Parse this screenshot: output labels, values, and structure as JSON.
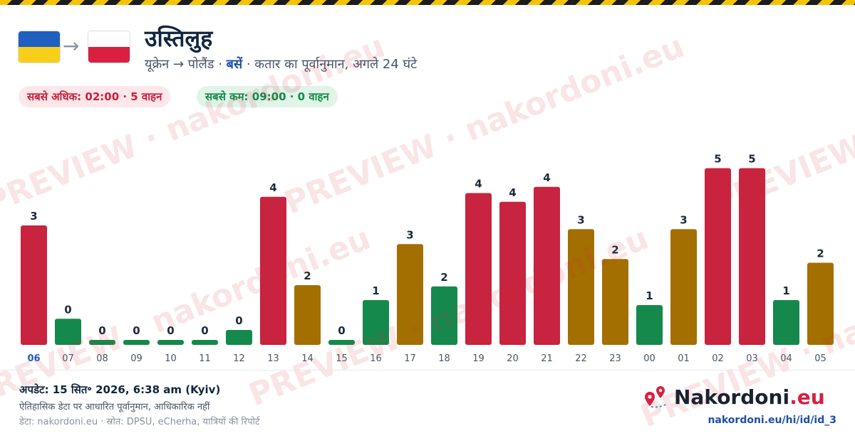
{
  "header": {
    "origin_flag": "ukraine-flag",
    "destination_flag": "poland-flag",
    "arrow": "→",
    "title": "उस्तिलुह",
    "subtitle_route": "यूक्रेन → पोलैंड · ",
    "subtitle_mode": "बसें",
    "subtitle_rest": " · कतार का पूर्वानुमान, अगले 24 घंटे"
  },
  "badges": {
    "max": "सबसे अधिक: 02:00 · 5 वाहन",
    "min": "सबसे कम: 09:00 · 0 वाहन"
  },
  "chart_data": {
    "type": "bar",
    "categories": [
      "06",
      "07",
      "08",
      "09",
      "10",
      "11",
      "12",
      "13",
      "14",
      "15",
      "16",
      "17",
      "18",
      "19",
      "20",
      "21",
      "22",
      "23",
      "00",
      "01",
      "02",
      "03",
      "04",
      "05"
    ],
    "values": [
      3,
      0,
      0,
      0,
      0,
      0,
      0,
      4,
      2,
      0,
      1,
      3,
      2,
      4,
      4,
      4,
      3,
      2,
      1,
      3,
      5,
      5,
      1,
      2
    ],
    "visual_levels": [
      0.96,
      0.21,
      0.04,
      0.04,
      0.04,
      0.04,
      0.12,
      1.19,
      0.48,
      0.04,
      0.36,
      0.81,
      0.47,
      1.22,
      1.15,
      1.27,
      0.93,
      0.69,
      0.32,
      0.93,
      1.42,
      1.42,
      0.36,
      0.66
    ],
    "colors": [
      "red",
      "green",
      "green",
      "green",
      "green",
      "green",
      "green",
      "red",
      "amber",
      "green",
      "green",
      "amber",
      "green",
      "red",
      "red",
      "red",
      "amber",
      "amber",
      "green",
      "amber",
      "red",
      "red",
      "green",
      "amber"
    ],
    "palette": {
      "red": "#c8233f",
      "amber": "#a36f00",
      "green": "#14894b"
    },
    "highlight_category": "06",
    "highlight_color": "#1e5fc0",
    "title": "",
    "xlabel": "",
    "ylabel": ""
  },
  "watermark": "PREVIEW · nakordoni.eu",
  "footer": {
    "updated": "अपडेट: 15 सित॰ 2026, 6:38 am (Kyiv)",
    "note": "ऐतिहासिक डेटा पर आधारित पूर्वानुमान, आधिकारिक नहीं",
    "source": "डेटा: nakordoni.eu · स्रोत: DPSU, eCherha, यात्रियों की रिपोर्ट",
    "brand_name": "Nakordoni",
    "brand_domain": ".eu",
    "brand_icon": "map-pin-route-icon",
    "url": "nakordoni.eu/hi/id/id_3"
  }
}
